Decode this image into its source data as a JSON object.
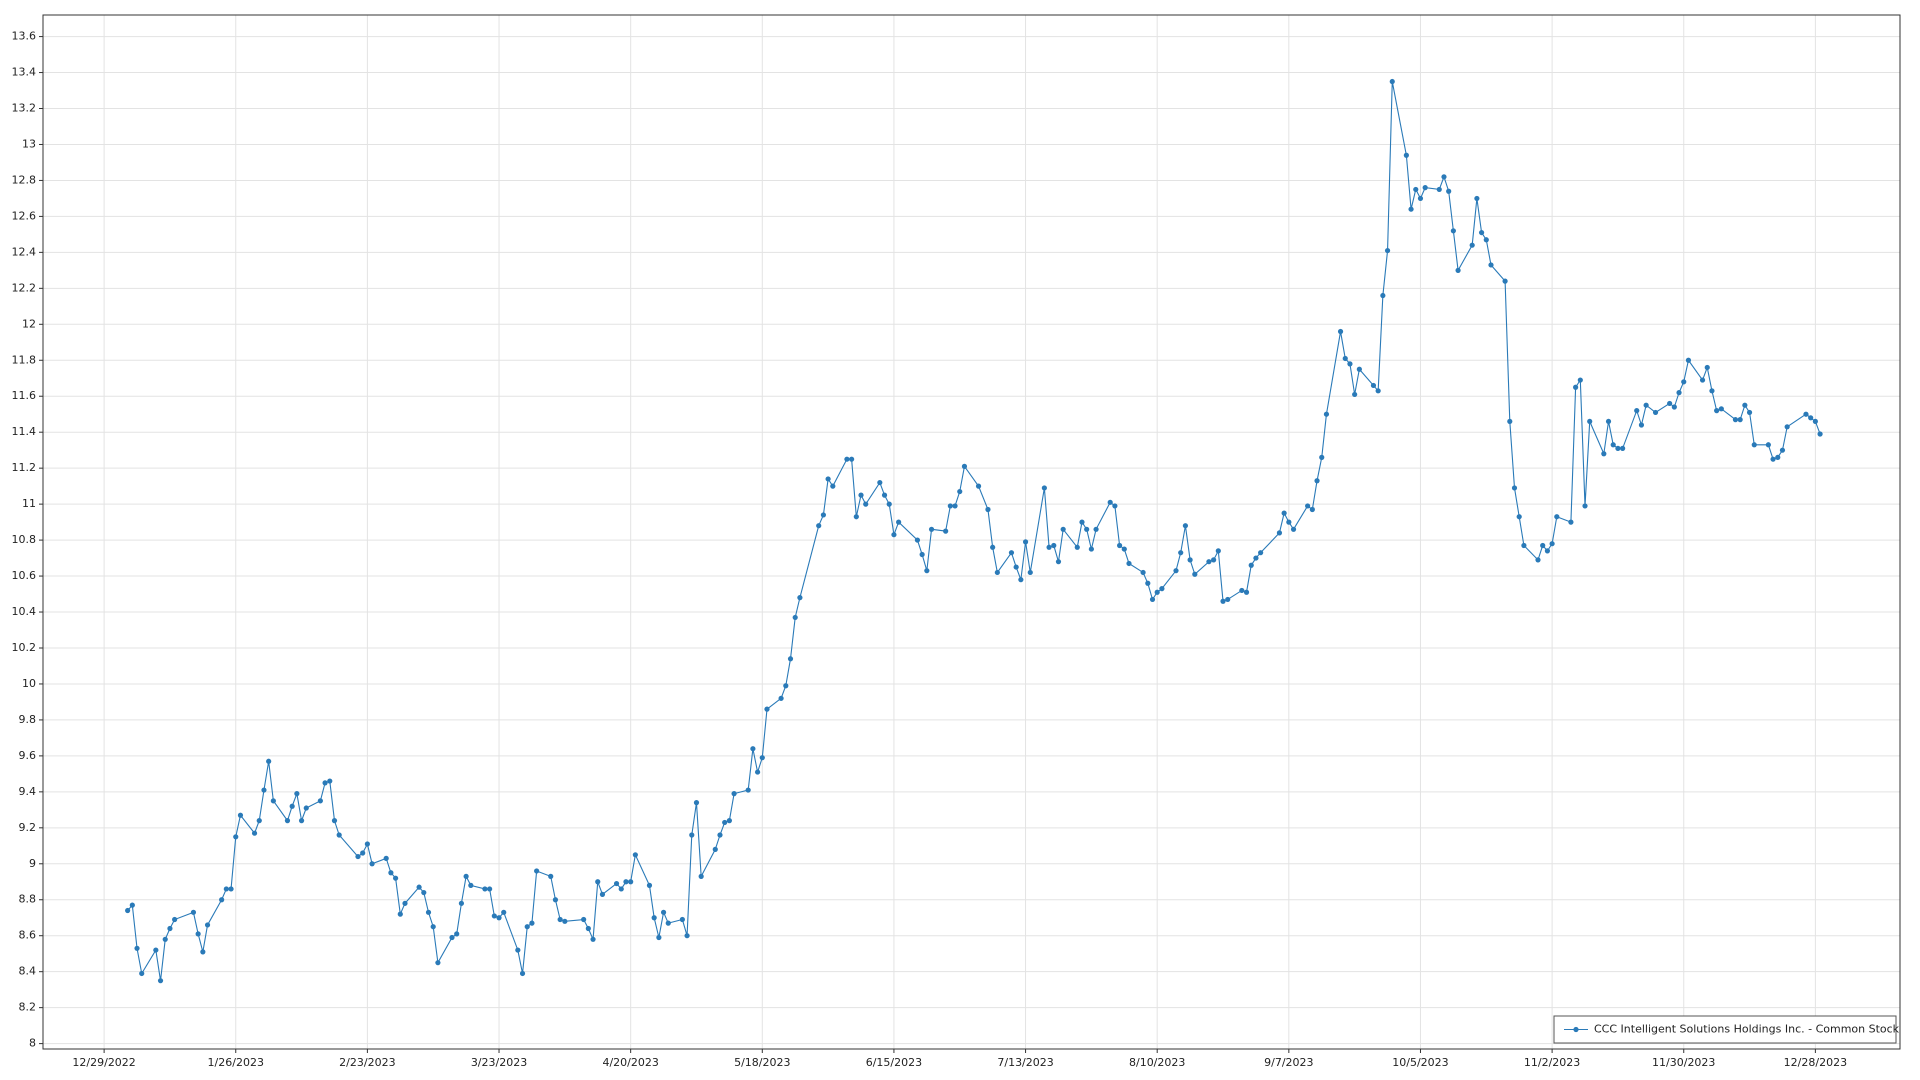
{
  "chart_data": {
    "type": "line",
    "x": [
      "1/3/2023",
      "1/4/2023",
      "1/5/2023",
      "1/6/2023",
      "1/9/2023",
      "1/10/2023",
      "1/11/2023",
      "1/12/2023",
      "1/13/2023",
      "1/17/2023",
      "1/18/2023",
      "1/19/2023",
      "1/20/2023",
      "1/23/2023",
      "1/24/2023",
      "1/25/2023",
      "1/26/2023",
      "1/27/2023",
      "1/30/2023",
      "1/31/2023",
      "2/1/2023",
      "2/2/2023",
      "2/3/2023",
      "2/6/2023",
      "2/7/2023",
      "2/8/2023",
      "2/9/2023",
      "2/10/2023",
      "2/13/2023",
      "2/14/2023",
      "2/15/2023",
      "2/16/2023",
      "2/17/2023",
      "2/21/2023",
      "2/22/2023",
      "2/23/2023",
      "2/24/2023",
      "2/27/2023",
      "2/28/2023",
      "3/1/2023",
      "3/2/2023",
      "3/3/2023",
      "3/6/2023",
      "3/7/2023",
      "3/8/2023",
      "3/9/2023",
      "3/10/2023",
      "3/13/2023",
      "3/14/2023",
      "3/15/2023",
      "3/16/2023",
      "3/17/2023",
      "3/20/2023",
      "3/21/2023",
      "3/22/2023",
      "3/23/2023",
      "3/24/2023",
      "3/27/2023",
      "3/28/2023",
      "3/29/2023",
      "3/30/2023",
      "3/31/2023",
      "4/3/2023",
      "4/4/2023",
      "4/5/2023",
      "4/6/2023",
      "4/10/2023",
      "4/11/2023",
      "4/12/2023",
      "4/13/2023",
      "4/14/2023",
      "4/17/2023",
      "4/18/2023",
      "4/19/2023",
      "4/20/2023",
      "4/21/2023",
      "4/24/2023",
      "4/25/2023",
      "4/26/2023",
      "4/27/2023",
      "4/28/2023",
      "5/1/2023",
      "5/2/2023",
      "5/3/2023",
      "5/4/2023",
      "5/5/2023",
      "5/8/2023",
      "5/9/2023",
      "5/10/2023",
      "5/11/2023",
      "5/12/2023",
      "5/15/2023",
      "5/16/2023",
      "5/17/2023",
      "5/18/2023",
      "5/19/2023",
      "5/22/2023",
      "5/23/2023",
      "5/24/2023",
      "5/25/2023",
      "5/26/2023",
      "5/30/2023",
      "5/31/2023",
      "6/1/2023",
      "6/2/2023",
      "6/5/2023",
      "6/6/2023",
      "6/7/2023",
      "6/8/2023",
      "6/9/2023",
      "6/12/2023",
      "6/13/2023",
      "6/14/2023",
      "6/15/2023",
      "6/16/2023",
      "6/20/2023",
      "6/21/2023",
      "6/22/2023",
      "6/23/2023",
      "6/26/2023",
      "6/27/2023",
      "6/28/2023",
      "6/29/2023",
      "6/30/2023",
      "7/3/2023",
      "7/5/2023",
      "7/6/2023",
      "7/7/2023",
      "7/10/2023",
      "7/11/2023",
      "7/12/2023",
      "7/13/2023",
      "7/14/2023",
      "7/17/2023",
      "7/18/2023",
      "7/19/2023",
      "7/20/2023",
      "7/21/2023",
      "7/24/2023",
      "7/25/2023",
      "7/26/2023",
      "7/27/2023",
      "7/28/2023",
      "7/31/2023",
      "8/1/2023",
      "8/2/2023",
      "8/3/2023",
      "8/4/2023",
      "8/7/2023",
      "8/8/2023",
      "8/9/2023",
      "8/10/2023",
      "8/11/2023",
      "8/14/2023",
      "8/15/2023",
      "8/16/2023",
      "8/17/2023",
      "8/18/2023",
      "8/21/2023",
      "8/22/2023",
      "8/23/2023",
      "8/24/2023",
      "8/25/2023",
      "8/28/2023",
      "8/29/2023",
      "8/30/2023",
      "8/31/2023",
      "9/1/2023",
      "9/5/2023",
      "9/6/2023",
      "9/7/2023",
      "9/8/2023",
      "9/11/2023",
      "9/12/2023",
      "9/13/2023",
      "9/14/2023",
      "9/15/2023",
      "9/18/2023",
      "9/19/2023",
      "9/20/2023",
      "9/21/2023",
      "9/22/2023",
      "9/25/2023",
      "9/26/2023",
      "9/27/2023",
      "9/28/2023",
      "9/29/2023",
      "10/2/2023",
      "10/3/2023",
      "10/4/2023",
      "10/5/2023",
      "10/6/2023",
      "10/9/2023",
      "10/10/2023",
      "10/11/2023",
      "10/12/2023",
      "10/13/2023",
      "10/16/2023",
      "10/17/2023",
      "10/18/2023",
      "10/19/2023",
      "10/20/2023",
      "10/23/2023",
      "10/24/2023",
      "10/25/2023",
      "10/26/2023",
      "10/27/2023",
      "10/30/2023",
      "10/31/2023",
      "11/1/2023",
      "11/2/2023",
      "11/3/2023",
      "11/6/2023",
      "11/7/2023",
      "11/8/2023",
      "11/9/2023",
      "11/10/2023",
      "11/13/2023",
      "11/14/2023",
      "11/15/2023",
      "11/16/2023",
      "11/17/2023",
      "11/20/2023",
      "11/21/2023",
      "11/22/2023",
      "11/24/2023",
      "11/27/2023",
      "11/28/2023",
      "11/29/2023",
      "11/30/2023",
      "12/1/2023",
      "12/4/2023",
      "12/5/2023",
      "12/6/2023",
      "12/7/2023",
      "12/8/2023",
      "12/11/2023",
      "12/12/2023",
      "12/13/2023",
      "12/14/2023",
      "12/15/2023",
      "12/18/2023",
      "12/19/2023",
      "12/20/2023",
      "12/21/2023",
      "12/22/2023",
      "12/26/2023",
      "12/27/2023",
      "12/28/2023",
      "12/29/2023"
    ],
    "series": [
      {
        "name": "CCC Intelligent Solutions Holdings Inc. - Common Stock",
        "color": "#2a7ab8",
        "values": [
          8.74,
          8.77,
          8.53,
          8.39,
          8.52,
          8.35,
          8.58,
          8.64,
          8.69,
          8.73,
          8.61,
          8.51,
          8.66,
          8.8,
          8.86,
          8.86,
          9.15,
          9.27,
          9.17,
          9.24,
          9.41,
          9.57,
          9.35,
          9.24,
          9.32,
          9.39,
          9.24,
          9.31,
          9.35,
          9.45,
          9.46,
          9.24,
          9.16,
          9.04,
          9.06,
          9.11,
          9.0,
          9.03,
          8.95,
          8.92,
          8.72,
          8.78,
          8.87,
          8.84,
          8.73,
          8.65,
          8.45,
          8.59,
          8.61,
          8.78,
          8.93,
          8.88,
          8.86,
          8.86,
          8.71,
          8.7,
          8.73,
          8.52,
          8.39,
          8.65,
          8.67,
          8.96,
          8.93,
          8.8,
          8.69,
          8.68,
          8.69,
          8.64,
          8.58,
          8.9,
          8.83,
          8.89,
          8.86,
          8.9,
          8.9,
          9.05,
          8.88,
          8.7,
          8.59,
          8.73,
          8.67,
          8.69,
          8.6,
          9.16,
          9.34,
          8.93,
          9.08,
          9.16,
          9.23,
          9.24,
          9.39,
          9.41,
          9.64,
          9.51,
          9.59,
          9.86,
          9.92,
          9.99,
          10.14,
          10.37,
          10.48,
          10.88,
          10.94,
          11.14,
          11.1,
          11.25,
          11.25,
          10.93,
          11.05,
          11.0,
          11.12,
          11.05,
          11.0,
          10.83,
          10.9,
          10.8,
          10.72,
          10.63,
          10.86,
          10.85,
          10.99,
          10.99,
          11.07,
          11.21,
          11.1,
          10.97,
          10.76,
          10.62,
          10.73,
          10.65,
          10.58,
          10.79,
          10.62,
          11.09,
          10.76,
          10.77,
          10.68,
          10.86,
          10.76,
          10.9,
          10.86,
          10.75,
          10.86,
          11.01,
          10.99,
          10.77,
          10.75,
          10.67,
          10.62,
          10.56,
          10.47,
          10.51,
          10.53,
          10.63,
          10.73,
          10.88,
          10.69,
          10.61,
          10.68,
          10.69,
          10.74,
          10.46,
          10.47,
          10.52,
          10.51,
          10.66,
          10.7,
          10.73,
          10.84,
          10.95,
          10.9,
          10.86,
          10.99,
          10.97,
          11.13,
          11.26,
          11.5,
          11.96,
          11.81,
          11.78,
          11.61,
          11.75,
          11.66,
          11.63,
          12.16,
          12.41,
          13.35,
          12.94,
          12.64,
          12.75,
          12.7,
          12.76,
          12.75,
          12.82,
          12.74,
          12.52,
          12.3,
          12.44,
          12.7,
          12.51,
          12.47,
          12.33,
          12.24,
          11.46,
          11.09,
          10.93,
          10.77,
          10.69,
          10.77,
          10.74,
          10.78,
          10.93,
          10.9,
          11.65,
          11.69,
          10.99,
          11.46,
          11.28,
          11.46,
          11.33,
          11.31,
          11.31,
          11.52,
          11.44,
          11.55,
          11.51,
          11.56,
          11.54,
          11.62,
          11.68,
          11.8,
          11.69,
          11.76,
          11.63,
          11.52,
          11.53,
          11.47,
          11.47,
          11.55,
          11.51,
          11.33,
          11.33,
          11.25,
          11.26,
          11.3,
          11.43,
          11.5,
          11.48,
          11.46,
          11.39
        ]
      }
    ],
    "xlim": [
      "12/16/2022",
      "1/15/2024"
    ],
    "xticks": [
      "12/29/2022",
      "1/26/2023",
      "2/23/2023",
      "3/23/2023",
      "4/20/2023",
      "5/18/2023",
      "6/15/2023",
      "7/13/2023",
      "8/10/2023",
      "9/7/2023",
      "10/5/2023",
      "11/2/2023",
      "11/30/2023",
      "12/28/2023"
    ],
    "ylim": [
      7.97,
      13.72
    ],
    "yticks": [
      8,
      8.2,
      8.4,
      8.6,
      8.8,
      9,
      9.2,
      9.4,
      9.6,
      9.8,
      10,
      10.2,
      10.4,
      10.6,
      10.8,
      11,
      11.2,
      11.4,
      11.6,
      11.8,
      12,
      12.2,
      12.4,
      12.6,
      12.8,
      13,
      13.2,
      13.4,
      13.6
    ],
    "grid": true,
    "legend": "lower right"
  }
}
